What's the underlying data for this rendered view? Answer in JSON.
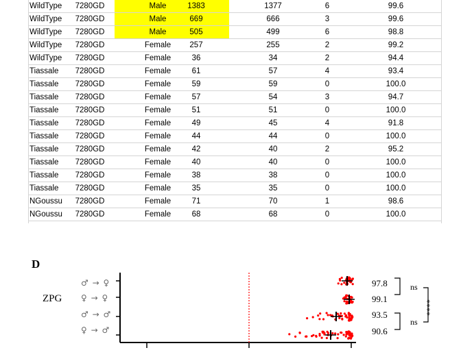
{
  "table": {
    "rows": [
      {
        "strain": "WildType",
        "line": "7280GD",
        "sex": "Male",
        "total": "1383",
        "survived": "1377",
        "dead": "6",
        "pct": "99.6",
        "highlight": true
      },
      {
        "strain": "WildType",
        "line": "7280GD",
        "sex": "Male",
        "total": "669",
        "survived": "666",
        "dead": "3",
        "pct": "99.6",
        "highlight": true
      },
      {
        "strain": "WildType",
        "line": "7280GD",
        "sex": "Male",
        "total": "505",
        "survived": "499",
        "dead": "6",
        "pct": "98.8",
        "highlight": true
      },
      {
        "strain": "WildType",
        "line": "7280GD",
        "sex": "Female",
        "total": "257",
        "survived": "255",
        "dead": "2",
        "pct": "99.2",
        "highlight": false
      },
      {
        "strain": "WildType",
        "line": "7280GD",
        "sex": "Female",
        "total": "36",
        "survived": "34",
        "dead": "2",
        "pct": "94.4",
        "highlight": false
      },
      {
        "strain": "Tiassale",
        "line": "7280GD",
        "sex": "Female",
        "total": "61",
        "survived": "57",
        "dead": "4",
        "pct": "93.4",
        "highlight": false
      },
      {
        "strain": "Tiassale",
        "line": "7280GD",
        "sex": "Female",
        "total": "59",
        "survived": "59",
        "dead": "0",
        "pct": "100.0",
        "highlight": false
      },
      {
        "strain": "Tiassale",
        "line": "7280GD",
        "sex": "Female",
        "total": "57",
        "survived": "54",
        "dead": "3",
        "pct": "94.7",
        "highlight": false
      },
      {
        "strain": "Tiassale",
        "line": "7280GD",
        "sex": "Female",
        "total": "51",
        "survived": "51",
        "dead": "0",
        "pct": "100.0",
        "highlight": false
      },
      {
        "strain": "Tiassale",
        "line": "7280GD",
        "sex": "Female",
        "total": "49",
        "survived": "45",
        "dead": "4",
        "pct": "91.8",
        "highlight": false
      },
      {
        "strain": "Tiassale",
        "line": "7280GD",
        "sex": "Female",
        "total": "44",
        "survived": "44",
        "dead": "0",
        "pct": "100.0",
        "highlight": false
      },
      {
        "strain": "Tiassale",
        "line": "7280GD",
        "sex": "Female",
        "total": "42",
        "survived": "40",
        "dead": "2",
        "pct": "95.2",
        "highlight": false
      },
      {
        "strain": "Tiassale",
        "line": "7280GD",
        "sex": "Female",
        "total": "40",
        "survived": "40",
        "dead": "0",
        "pct": "100.0",
        "highlight": false
      },
      {
        "strain": "Tiassale",
        "line": "7280GD",
        "sex": "Female",
        "total": "38",
        "survived": "38",
        "dead": "0",
        "pct": "100.0",
        "highlight": false
      },
      {
        "strain": "Tiassale",
        "line": "7280GD",
        "sex": "Female",
        "total": "35",
        "survived": "35",
        "dead": "0",
        "pct": "100.0",
        "highlight": false
      },
      {
        "strain": "NGoussu",
        "line": "7280GD",
        "sex": "Female",
        "total": "71",
        "survived": "70",
        "dead": "1",
        "pct": "98.6",
        "highlight": false
      },
      {
        "strain": "NGoussu",
        "line": "7280GD",
        "sex": "Female",
        "total": "68",
        "survived": "68",
        "dead": "0",
        "pct": "100.0",
        "highlight": false
      }
    ],
    "highlight_color": "#ffff00",
    "grid_color": "#d4d4d4"
  },
  "figure": {
    "panel_letter": "D",
    "group_label": "ZPG",
    "crosses": [
      {
        "label": "♂ → ♀",
        "value": "97.8"
      },
      {
        "label": "♀ → ♀",
        "value": "99.1"
      },
      {
        "label": "♂ → ♂",
        "value": "93.5"
      },
      {
        "label": "♀ → ♂",
        "value": "90.6"
      }
    ],
    "comparisons": {
      "upper": "ns",
      "lower": "ns",
      "overall": "****"
    },
    "point_color": "#ff0000",
    "reference_line_color": "#ff0000"
  }
}
